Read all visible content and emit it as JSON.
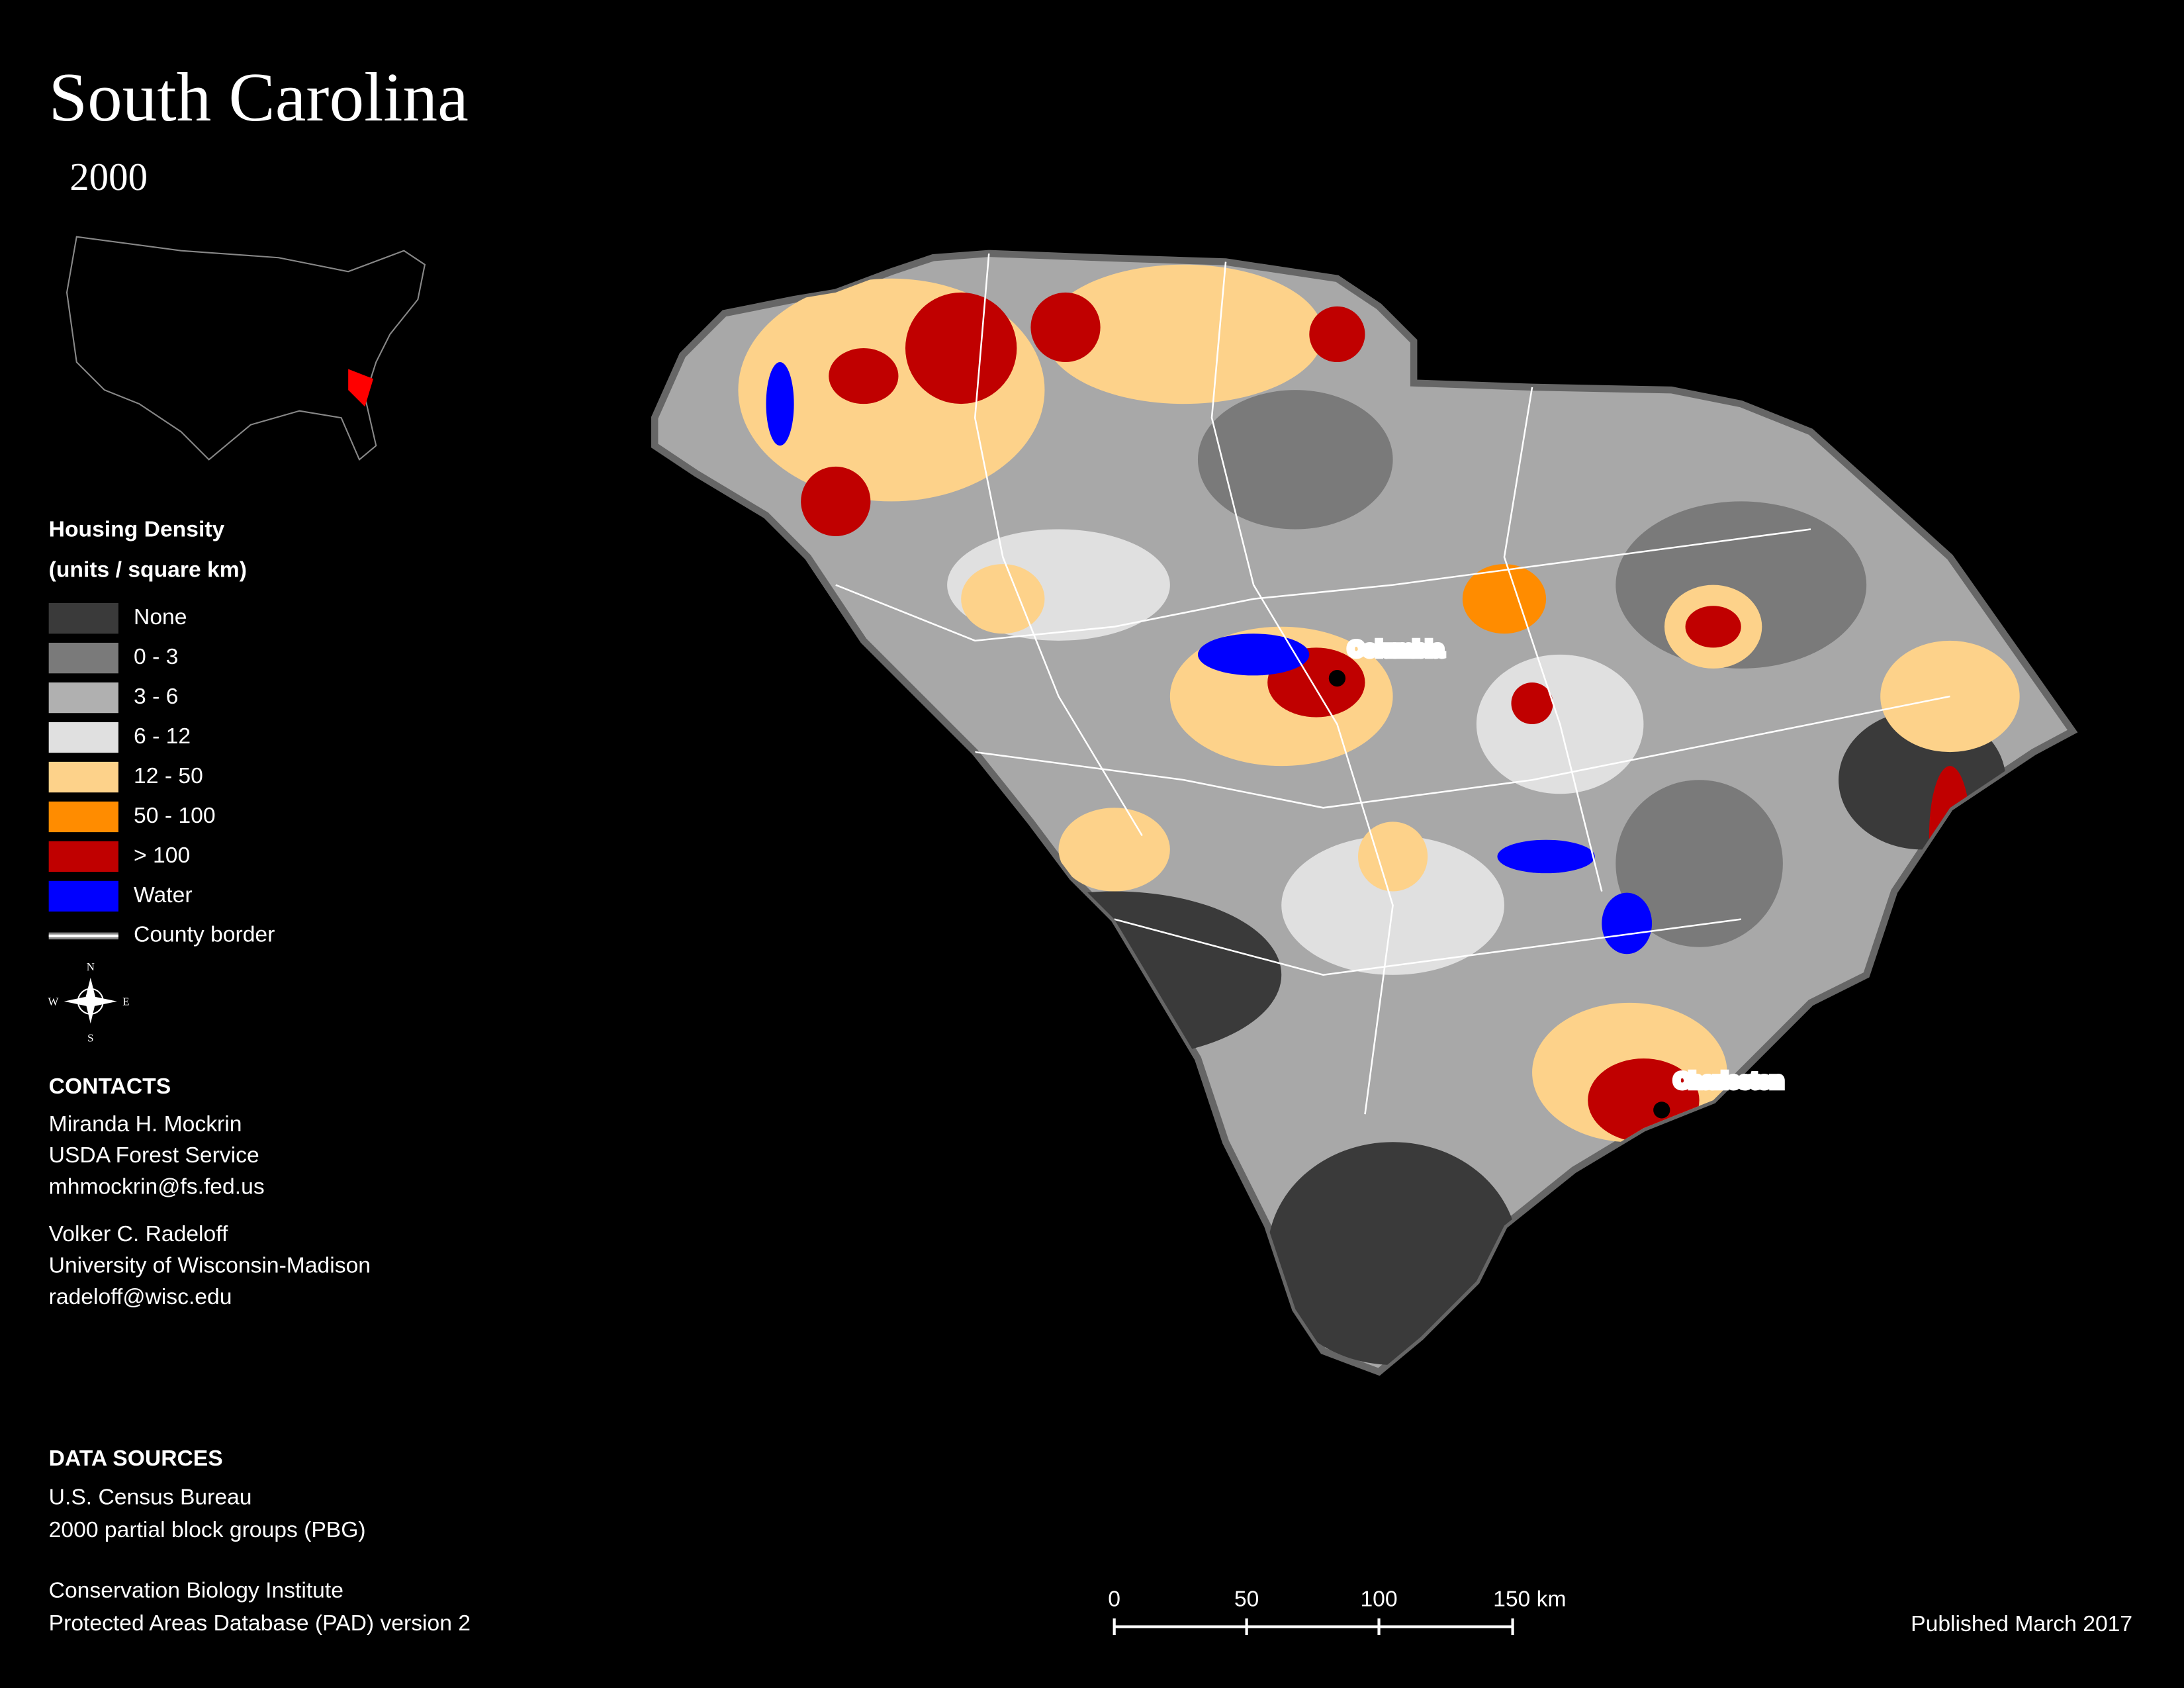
{
  "title": "South Carolina",
  "subtitle": "2000",
  "legend": {
    "title": "Housing Density",
    "subtitle": "(units / square km)",
    "items": [
      {
        "label": "None",
        "color": "#3a3a3a"
      },
      {
        "label": "0 - 3",
        "color": "#7a7a7a"
      },
      {
        "label": "3 - 6",
        "color": "#b0b0b0"
      },
      {
        "label": "6 - 12",
        "color": "#e0e0e0"
      },
      {
        "label": "12 - 50",
        "color": "#fdd28a"
      },
      {
        "label": "50 - 100",
        "color": "#ff8c00"
      },
      {
        "label": "> 100",
        "color": "#c00000"
      },
      {
        "label": "Water",
        "color": "#0000ff"
      },
      {
        "label": "County border",
        "color": "#ffffff"
      }
    ]
  },
  "map": {
    "cities": [
      "Columbia",
      "Charleston"
    ]
  },
  "compass": [
    "N",
    "S",
    "E",
    "W"
  ],
  "contacts": {
    "heading": "CONTACTS",
    "people": [
      [
        "Miranda H. Mockrin",
        "USDA Forest Service",
        "mhmockrin@fs.fed.us"
      ],
      [
        "Volker C. Radeloff",
        "University of Wisconsin-Madison",
        "radeloff@wisc.edu"
      ]
    ]
  },
  "data_sources": {
    "heading": "DATA SOURCES",
    "entries": [
      [
        "U.S. Census Bureau",
        "2000 partial block groups (PBG)"
      ],
      [
        "Conservation Biology Institute",
        "Protected Areas Database (PAD) version 2"
      ]
    ]
  },
  "scale_bar": [
    "0",
    "50",
    "100",
    "150 km"
  ],
  "footer": "Published March 2017"
}
